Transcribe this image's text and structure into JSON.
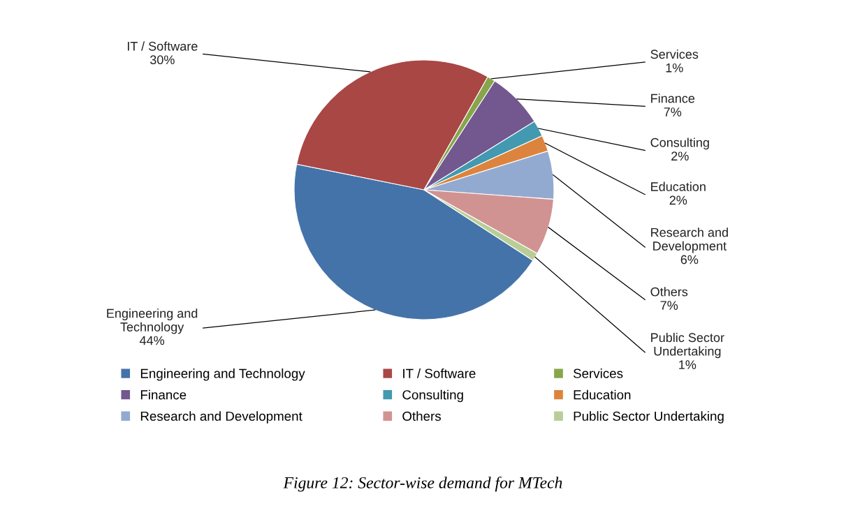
{
  "chart_data": {
    "type": "pie",
    "title": "Figure 12: Sector-wise demand for MTech",
    "categories": [
      "Engineering and Technology",
      "IT / Software",
      "Services",
      "Finance",
      "Consulting",
      "Education",
      "Research and Development",
      "Others",
      "Public Sector Undertaking"
    ],
    "values": [
      44,
      30,
      1,
      7,
      2,
      2,
      6,
      7,
      1
    ],
    "value_labels": [
      "44%",
      "30%",
      "1%",
      "7%",
      "2%",
      "2%",
      "6%",
      "7%",
      "1%"
    ],
    "colors": [
      "#4473a9",
      "#a94745",
      "#87a54b",
      "#72588f",
      "#4299b0",
      "#dc843d",
      "#93aad0",
      "#d19392",
      "#b9ce97"
    ],
    "legend": "bottom"
  }
}
